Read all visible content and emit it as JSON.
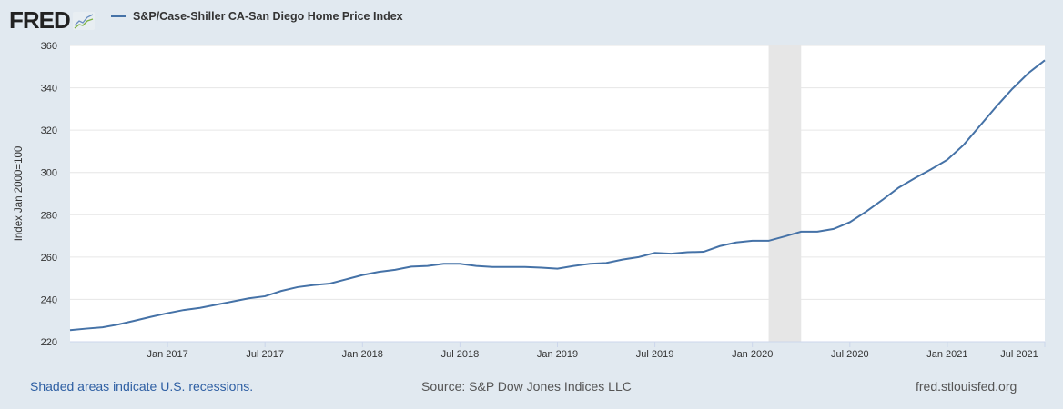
{
  "header": {
    "logo": "FRED",
    "logo_icon": "chart-line-icon"
  },
  "footer": {
    "recession_note": "Shaded areas indicate U.S. recessions.",
    "source": "Source: S&P Dow Jones Indices LLC",
    "site": "fred.stlouisfed.org"
  },
  "colors": {
    "line": "#4572a7",
    "recession": "#e6e6e6",
    "background": "#e1e9f0",
    "note_link": "#2e5fa3"
  },
  "chart_data": {
    "type": "line",
    "title": "",
    "ylabel": "Index Jan 2000=100",
    "xlabel": "",
    "ylim": [
      220,
      360
    ],
    "yticks": [
      220,
      240,
      260,
      280,
      300,
      320,
      340,
      360
    ],
    "x_start": "2016-07",
    "x_end": "2021-07",
    "frequency": "monthly",
    "xticks": [
      {
        "label": "Jan 2017",
        "date": "2017-01"
      },
      {
        "label": "Jul 2017",
        "date": "2017-07"
      },
      {
        "label": "Jan 2018",
        "date": "2018-01"
      },
      {
        "label": "Jul 2018",
        "date": "2018-07"
      },
      {
        "label": "Jan 2019",
        "date": "2019-01"
      },
      {
        "label": "Jul 2019",
        "date": "2019-07"
      },
      {
        "label": "Jan 2020",
        "date": "2020-01"
      },
      {
        "label": "Jul 2020",
        "date": "2020-07"
      },
      {
        "label": "Jan 2021",
        "date": "2021-01"
      },
      {
        "label": "Jul 2021",
        "date": "2021-07"
      }
    ],
    "grid": true,
    "legend": "top-left",
    "recessions": [
      {
        "start": "2020-02",
        "end": "2020-04"
      }
    ],
    "series": [
      {
        "name": "S&P/Case-Shiller CA-San Diego Home Price Index",
        "values": [
          225.5,
          226.2,
          226.8,
          228.2,
          230,
          231.8,
          233.5,
          235,
          236,
          237.5,
          239,
          240.5,
          241.5,
          244,
          245.8,
          246.8,
          247.5,
          249.5,
          251.5,
          253,
          254,
          255.5,
          255.8,
          256.8,
          256.8,
          255.8,
          255.3,
          255.3,
          255.3,
          255,
          254.5,
          255.8,
          256.8,
          257.2,
          258.8,
          260,
          262,
          261.6,
          262.3,
          262.5,
          265.2,
          266.9,
          267.7,
          267.7,
          269.8,
          272,
          272,
          273.3,
          276.5,
          281.5,
          287,
          292.8,
          297.3,
          301.5,
          306,
          313,
          322,
          331,
          339.5,
          347,
          353
        ]
      }
    ]
  }
}
